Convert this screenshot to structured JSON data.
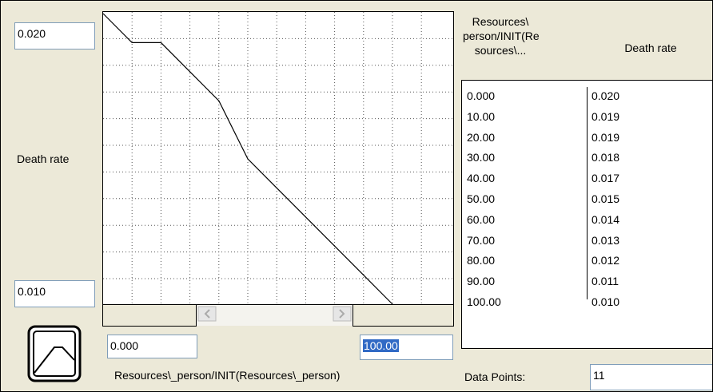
{
  "left_panel": {
    "y_max": "0.020",
    "y_label": "Death rate",
    "y_min": "0.010"
  },
  "bottom_panel": {
    "x_min": "0.000",
    "x_max": "100.00",
    "x_label": "Resources\\_person/INIT(Resources\\_person)"
  },
  "table": {
    "headers": [
      [
        "Resources\\",
        "person/INIT(Re",
        "sources\\..."
      ],
      [
        "Death rate"
      ]
    ],
    "rows": [
      [
        "0.000",
        "0.020"
      ],
      [
        "10.00",
        "0.019"
      ],
      [
        "20.00",
        "0.019"
      ],
      [
        "30.00",
        "0.018"
      ],
      [
        "40.00",
        "0.017"
      ],
      [
        "50.00",
        "0.015"
      ],
      [
        "60.00",
        "0.014"
      ],
      [
        "70.00",
        "0.013"
      ],
      [
        "80.00",
        "0.012"
      ],
      [
        "90.00",
        "0.011"
      ],
      [
        "100.00",
        "0.010"
      ]
    ]
  },
  "footer": {
    "points_label": "Data Points:",
    "points_value": "11"
  }
}
